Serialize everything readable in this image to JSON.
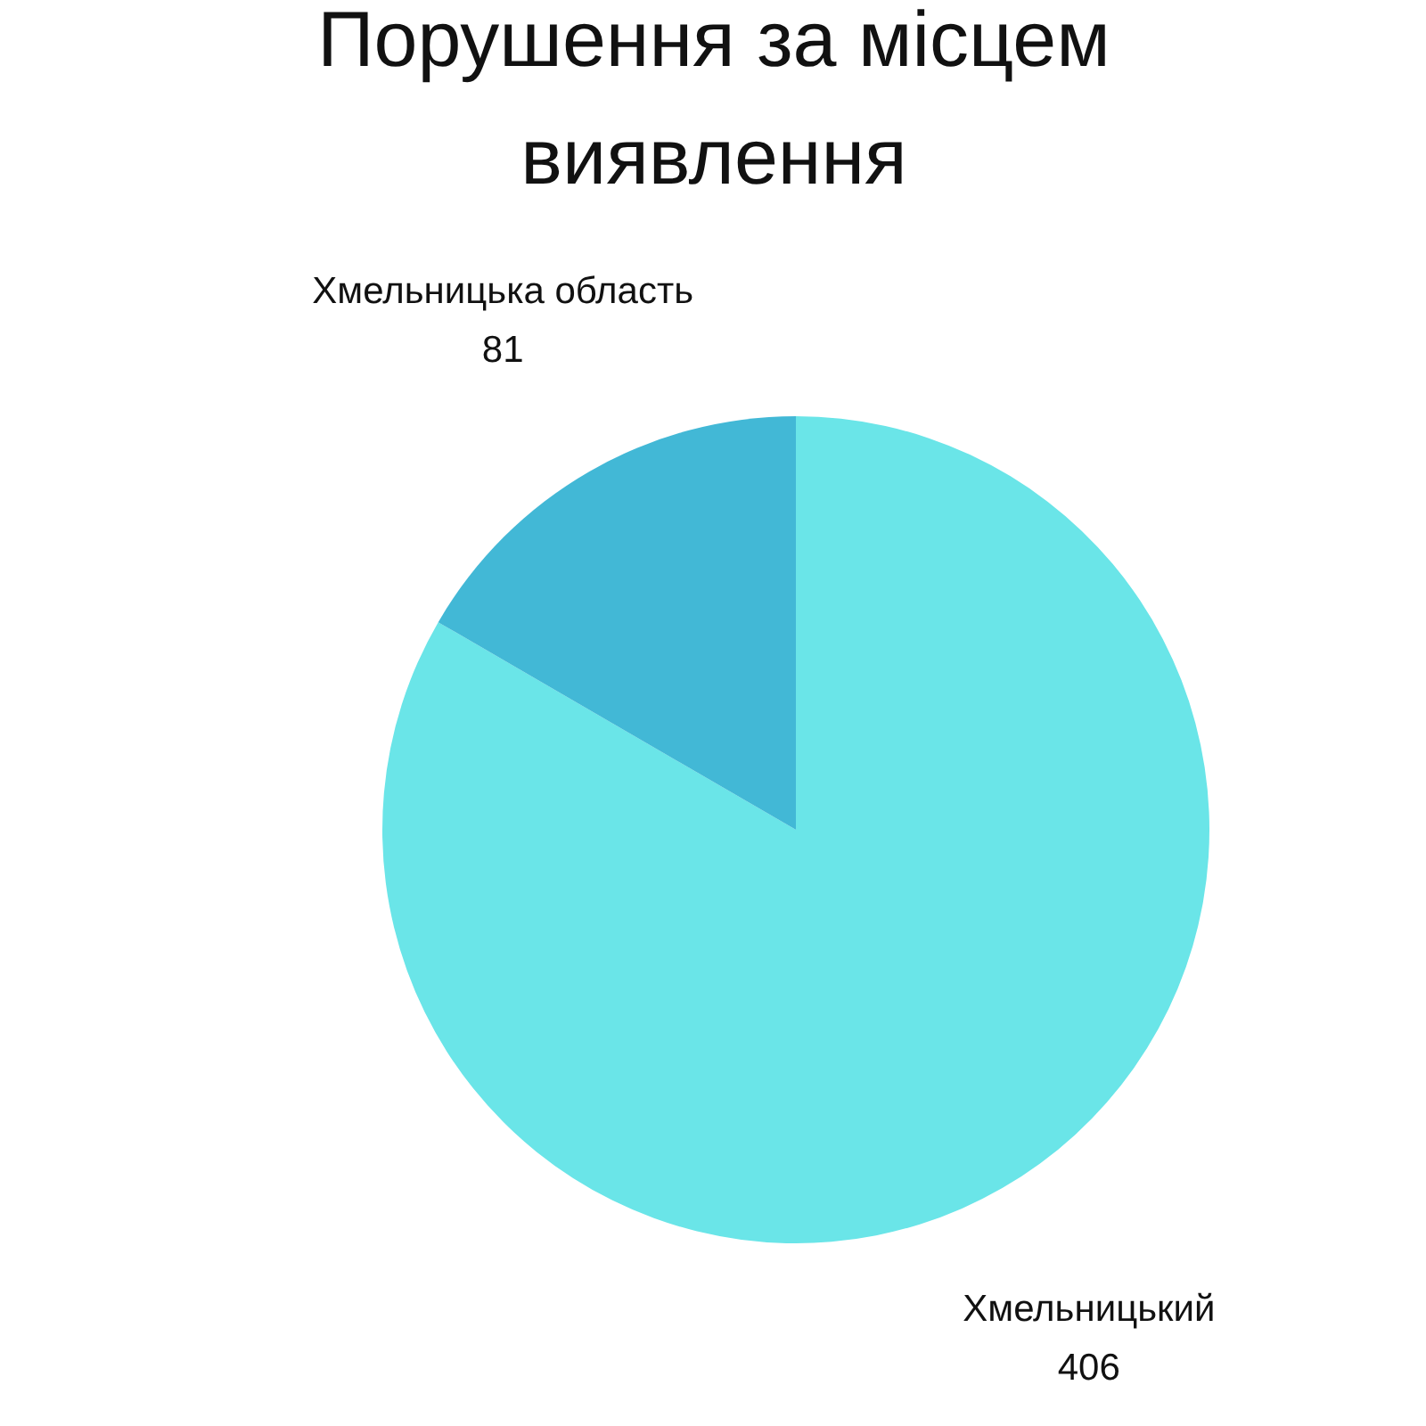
{
  "chart_data": {
    "type": "pie",
    "title": "Порушення за місцем виявлення",
    "categories": [
      "Хмельницький",
      "Хмельницька область"
    ],
    "values": [
      406,
      81
    ],
    "colors": [
      "#6ae5e8",
      "#42b8d6"
    ],
    "data_labels": true
  }
}
